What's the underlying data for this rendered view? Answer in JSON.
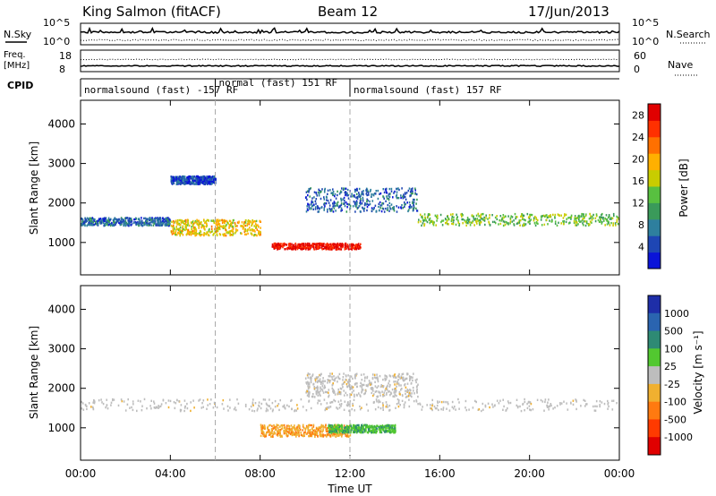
{
  "header": {
    "station": "King Salmon (fitACF)",
    "beam": "Beam 12",
    "date": "17/Jun/2013"
  },
  "noise_panel": {
    "left_label": "N.Sky",
    "right_label": "N.Search",
    "left_ticks": [
      "10^5",
      "10^0"
    ],
    "right_ticks": [
      "10^5",
      "10^0"
    ]
  },
  "freq_panel": {
    "left_label_line1": "Freq.",
    "left_label_line2": "[MHz]",
    "right_label": "Nave",
    "left_ticks": [
      "18",
      "8"
    ],
    "right_ticks": [
      "60",
      "0"
    ]
  },
  "cpid": {
    "label": "CPID",
    "segments": [
      {
        "text": "normalsound (fast) -157 RF",
        "start_hour": 0,
        "end_hour": 6
      },
      {
        "text": "normal (fast) 151 RF",
        "start_hour": 6,
        "end_hour": 12
      },
      {
        "text": "normalsound (fast) 157 RF",
        "start_hour": 12,
        "end_hour": 24
      }
    ]
  },
  "x_axis": {
    "label": "Time UT",
    "ticks": [
      "00:00",
      "04:00",
      "08:00",
      "12:00",
      "16:00",
      "20:00",
      "00:00"
    ],
    "tick_hours": [
      0,
      4,
      8,
      12,
      16,
      20,
      24
    ],
    "range_hours": [
      0,
      24
    ]
  },
  "power_panel": {
    "ylabel": "Slant Range [km]",
    "yticks": [
      "1000",
      "2000",
      "3000",
      "4000"
    ],
    "ytick_values": [
      1000,
      2000,
      3000,
      4000
    ],
    "yrange_km": [
      180,
      4600
    ],
    "colorbar_label": "Power [dB]",
    "colorbar_ticks": [
      "4",
      "8",
      "12",
      "16",
      "20",
      "24",
      "28"
    ],
    "colorbar_tick_values": [
      4,
      8,
      12,
      16,
      20,
      24,
      28
    ],
    "colorbar_range": [
      0,
      30
    ],
    "colors": [
      "#0a14d8",
      "#1e46b4",
      "#2e7f9e",
      "#3a9a5a",
      "#58c040",
      "#c8cc00",
      "#ffb000",
      "#ff7000",
      "#ff3000",
      "#e00000"
    ]
  },
  "velocity_panel": {
    "ylabel": "Slant Range [km]",
    "yticks": [
      "1000",
      "2000",
      "3000",
      "4000"
    ],
    "ytick_values": [
      1000,
      2000,
      3000,
      4000
    ],
    "yrange_km": [
      180,
      4600
    ],
    "colorbar_label": "Velocity [m s⁻¹]",
    "colorbar_ticks": [
      "1000",
      "500",
      "100",
      "25",
      "-25",
      "-100",
      "-500",
      "-1000"
    ],
    "colors": [
      "#1e2ea8",
      "#2a64b0",
      "#2e8a74",
      "#52c830",
      "#bdbdbd",
      "#f0b030",
      "#ff7a10",
      "#ff3a00",
      "#e00000"
    ]
  },
  "chart_data": [
    {
      "type": "heatmap",
      "title": "Power",
      "xlabel": "Time UT",
      "ylabel": "Slant Range [km]",
      "xlim": [
        0,
        24
      ],
      "ylim": [
        180,
        4600
      ],
      "colorbar": "Power [dB]",
      "features_range_km": [
        {
          "hours": [
            0,
            4
          ],
          "range": [
            1450,
            1650
          ],
          "power_db": 6
        },
        {
          "hours": [
            4,
            8
          ],
          "range": [
            1200,
            1600
          ],
          "power_db": 18
        },
        {
          "hours": [
            8.5,
            12.5
          ],
          "range": [
            850,
            1000
          ],
          "power_db": 28
        },
        {
          "hours": [
            10,
            15
          ],
          "range": [
            1800,
            2400
          ],
          "power_db": 6
        },
        {
          "hours": [
            15,
            24
          ],
          "range": [
            1450,
            1750
          ],
          "power_db": 14
        },
        {
          "hours": [
            4,
            6
          ],
          "range": [
            2500,
            2700
          ],
          "power_db": 4
        }
      ]
    },
    {
      "type": "heatmap",
      "title": "Velocity",
      "xlabel": "Time UT",
      "ylabel": "Slant Range [km]",
      "xlim": [
        0,
        24
      ],
      "ylim": [
        180,
        4600
      ],
      "colorbar": "Velocity [m s-1]",
      "features_range_km": [
        {
          "hours": [
            0,
            24
          ],
          "range": [
            1450,
            1750
          ],
          "velocity_ms": 0
        },
        {
          "hours": [
            8,
            12
          ],
          "range": [
            800,
            1100
          ],
          "velocity_ms": -150
        },
        {
          "hours": [
            11,
            14
          ],
          "range": [
            900,
            1100
          ],
          "velocity_ms": 100
        },
        {
          "hours": [
            10,
            15
          ],
          "range": [
            1800,
            2400
          ],
          "velocity_ms": 0
        }
      ]
    }
  ]
}
